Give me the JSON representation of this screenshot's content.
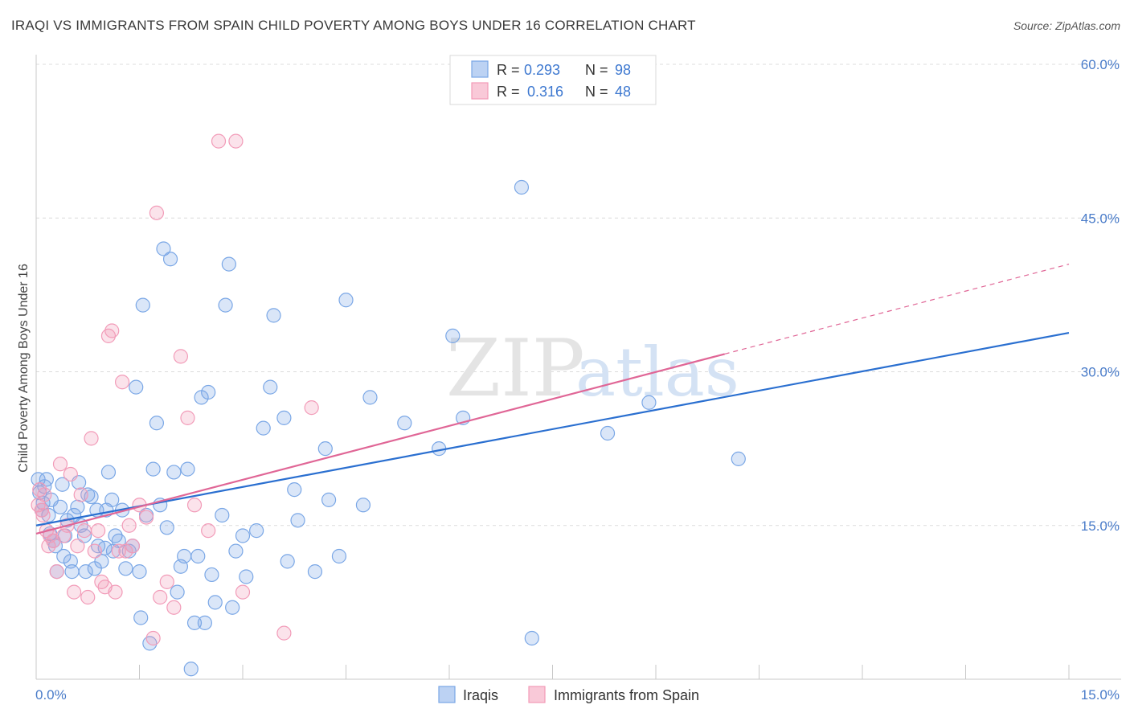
{
  "title": "IRAQI VS IMMIGRANTS FROM SPAIN CHILD POVERTY AMONG BOYS UNDER 16 CORRELATION CHART",
  "source": "Source: ZipAtlas.com",
  "watermark": {
    "zip": "ZIP",
    "atlas": "atlas"
  },
  "colors": {
    "iraqis": "#7aa7e6",
    "iraqis_line": "#2a6fd0",
    "spain": "#f29bb8",
    "spain_line": "#e06696",
    "axis_text": "#4a7cc9"
  },
  "chart_data": {
    "type": "scatter",
    "title": "IRAQI VS IMMIGRANTS FROM SPAIN CHILD POVERTY AMONG BOYS UNDER 16 CORRELATION CHART",
    "xlabel": "",
    "ylabel": "Child Poverty Among Boys Under 16",
    "xlim": [
      0,
      15
    ],
    "ylim": [
      0,
      60
    ],
    "x_tick_labels": [
      "0.0%",
      "15.0%"
    ],
    "y_tick_labels": [
      "15.0%",
      "30.0%",
      "45.0%",
      "60.0%"
    ],
    "y_ticks": [
      15,
      30,
      45,
      60
    ],
    "grid": true,
    "legend_position": "top-center",
    "stats": [
      {
        "r_label": "R =",
        "r": "0.293",
        "n_label": "N =",
        "n": "98"
      },
      {
        "r_label": "R =",
        "r": "0.316",
        "n_label": "N =",
        "n": "48"
      }
    ],
    "series": [
      {
        "name": "Iraqis",
        "color": "#7aa7e6",
        "trend": {
          "x": [
            0,
            15
          ],
          "y": [
            15.0,
            33.8
          ]
        },
        "x": [
          0.03,
          0.05,
          0.08,
          0.1,
          0.12,
          0.15,
          0.18,
          0.2,
          0.22,
          0.25,
          0.28,
          0.3,
          0.35,
          0.38,
          0.4,
          0.42,
          0.45,
          0.5,
          0.52,
          0.55,
          0.6,
          0.62,
          0.65,
          0.7,
          0.72,
          0.75,
          0.8,
          0.85,
          0.88,
          0.9,
          0.95,
          1.0,
          1.02,
          1.05,
          1.1,
          1.12,
          1.15,
          1.2,
          1.25,
          1.3,
          1.35,
          1.4,
          1.45,
          1.5,
          1.52,
          1.55,
          1.6,
          1.65,
          1.7,
          1.75,
          1.8,
          1.85,
          1.9,
          1.95,
          2.0,
          2.05,
          2.1,
          2.15,
          2.2,
          2.25,
          2.3,
          2.35,
          2.4,
          2.45,
          2.5,
          2.55,
          2.6,
          2.7,
          2.75,
          2.8,
          2.85,
          2.9,
          3.0,
          3.05,
          3.2,
          3.3,
          3.4,
          3.45,
          3.6,
          3.65,
          3.75,
          3.8,
          4.05,
          4.2,
          4.25,
          4.4,
          4.5,
          4.75,
          4.85,
          5.35,
          5.85,
          6.05,
          6.2,
          7.05,
          7.2,
          8.3,
          8.9,
          10.2
        ],
        "y": [
          19.5,
          18.2,
          16.5,
          17.2,
          18.8,
          19.5,
          16.0,
          14.2,
          17.5,
          13.5,
          13.0,
          10.5,
          16.8,
          19.0,
          12.0,
          14.0,
          15.5,
          11.5,
          10.5,
          16.0,
          16.8,
          19.2,
          15.0,
          14.0,
          10.5,
          18.0,
          17.8,
          10.8,
          16.5,
          13.0,
          11.5,
          12.8,
          16.5,
          20.2,
          17.5,
          12.5,
          14.0,
          13.5,
          16.5,
          10.8,
          12.5,
          13.0,
          28.5,
          10.5,
          6.0,
          36.5,
          16.0,
          3.5,
          20.5,
          25.0,
          17.0,
          42.0,
          14.8,
          41.0,
          20.2,
          8.5,
          11.0,
          12.0,
          20.5,
          1.0,
          5.5,
          12.0,
          27.5,
          5.5,
          28.0,
          10.2,
          7.5,
          16.0,
          36.5,
          40.5,
          7.0,
          12.5,
          14.0,
          10.0,
          14.5,
          24.5,
          28.5,
          35.5,
          25.5,
          11.5,
          18.5,
          15.5,
          10.5,
          22.5,
          17.5,
          12.0,
          37.0,
          17.0,
          27.5,
          25.0,
          22.5,
          33.5,
          25.5,
          48.0,
          4.0,
          24.0,
          27.0,
          21.5
        ]
      },
      {
        "name": "Immigrants from Spain",
        "color": "#f29bb8",
        "trend": {
          "x": [
            0,
            15
          ],
          "y": [
            14.2,
            40.5
          ],
          "solid_until_x": 10.0
        },
        "x": [
          0.03,
          0.05,
          0.08,
          0.1,
          0.12,
          0.15,
          0.18,
          0.2,
          0.25,
          0.3,
          0.35,
          0.4,
          0.45,
          0.5,
          0.55,
          0.6,
          0.65,
          0.7,
          0.75,
          0.8,
          0.85,
          0.9,
          0.95,
          1.0,
          1.05,
          1.1,
          1.15,
          1.2,
          1.25,
          1.3,
          1.35,
          1.4,
          1.5,
          1.6,
          1.7,
          1.75,
          1.8,
          1.9,
          2.0,
          2.1,
          2.2,
          2.3,
          2.5,
          2.65,
          2.9,
          3.0,
          3.6,
          4.0
        ],
        "y": [
          17.0,
          18.5,
          16.5,
          16.0,
          18.0,
          14.5,
          13.0,
          14.0,
          13.5,
          10.5,
          21.0,
          14.0,
          15.0,
          20.0,
          8.5,
          13.0,
          18.0,
          14.5,
          8.0,
          23.5,
          12.5,
          14.5,
          9.5,
          9.0,
          33.5,
          34.0,
          8.5,
          12.5,
          29.0,
          12.5,
          15.0,
          13.0,
          17.0,
          15.8,
          4.0,
          45.5,
          8.0,
          9.5,
          7.0,
          31.5,
          25.5,
          17.0,
          14.5,
          52.5,
          52.5,
          8.5,
          4.5,
          26.5
        ]
      }
    ]
  },
  "legend": {
    "iraqis": "Iraqis",
    "spain": "Immigrants from Spain"
  }
}
